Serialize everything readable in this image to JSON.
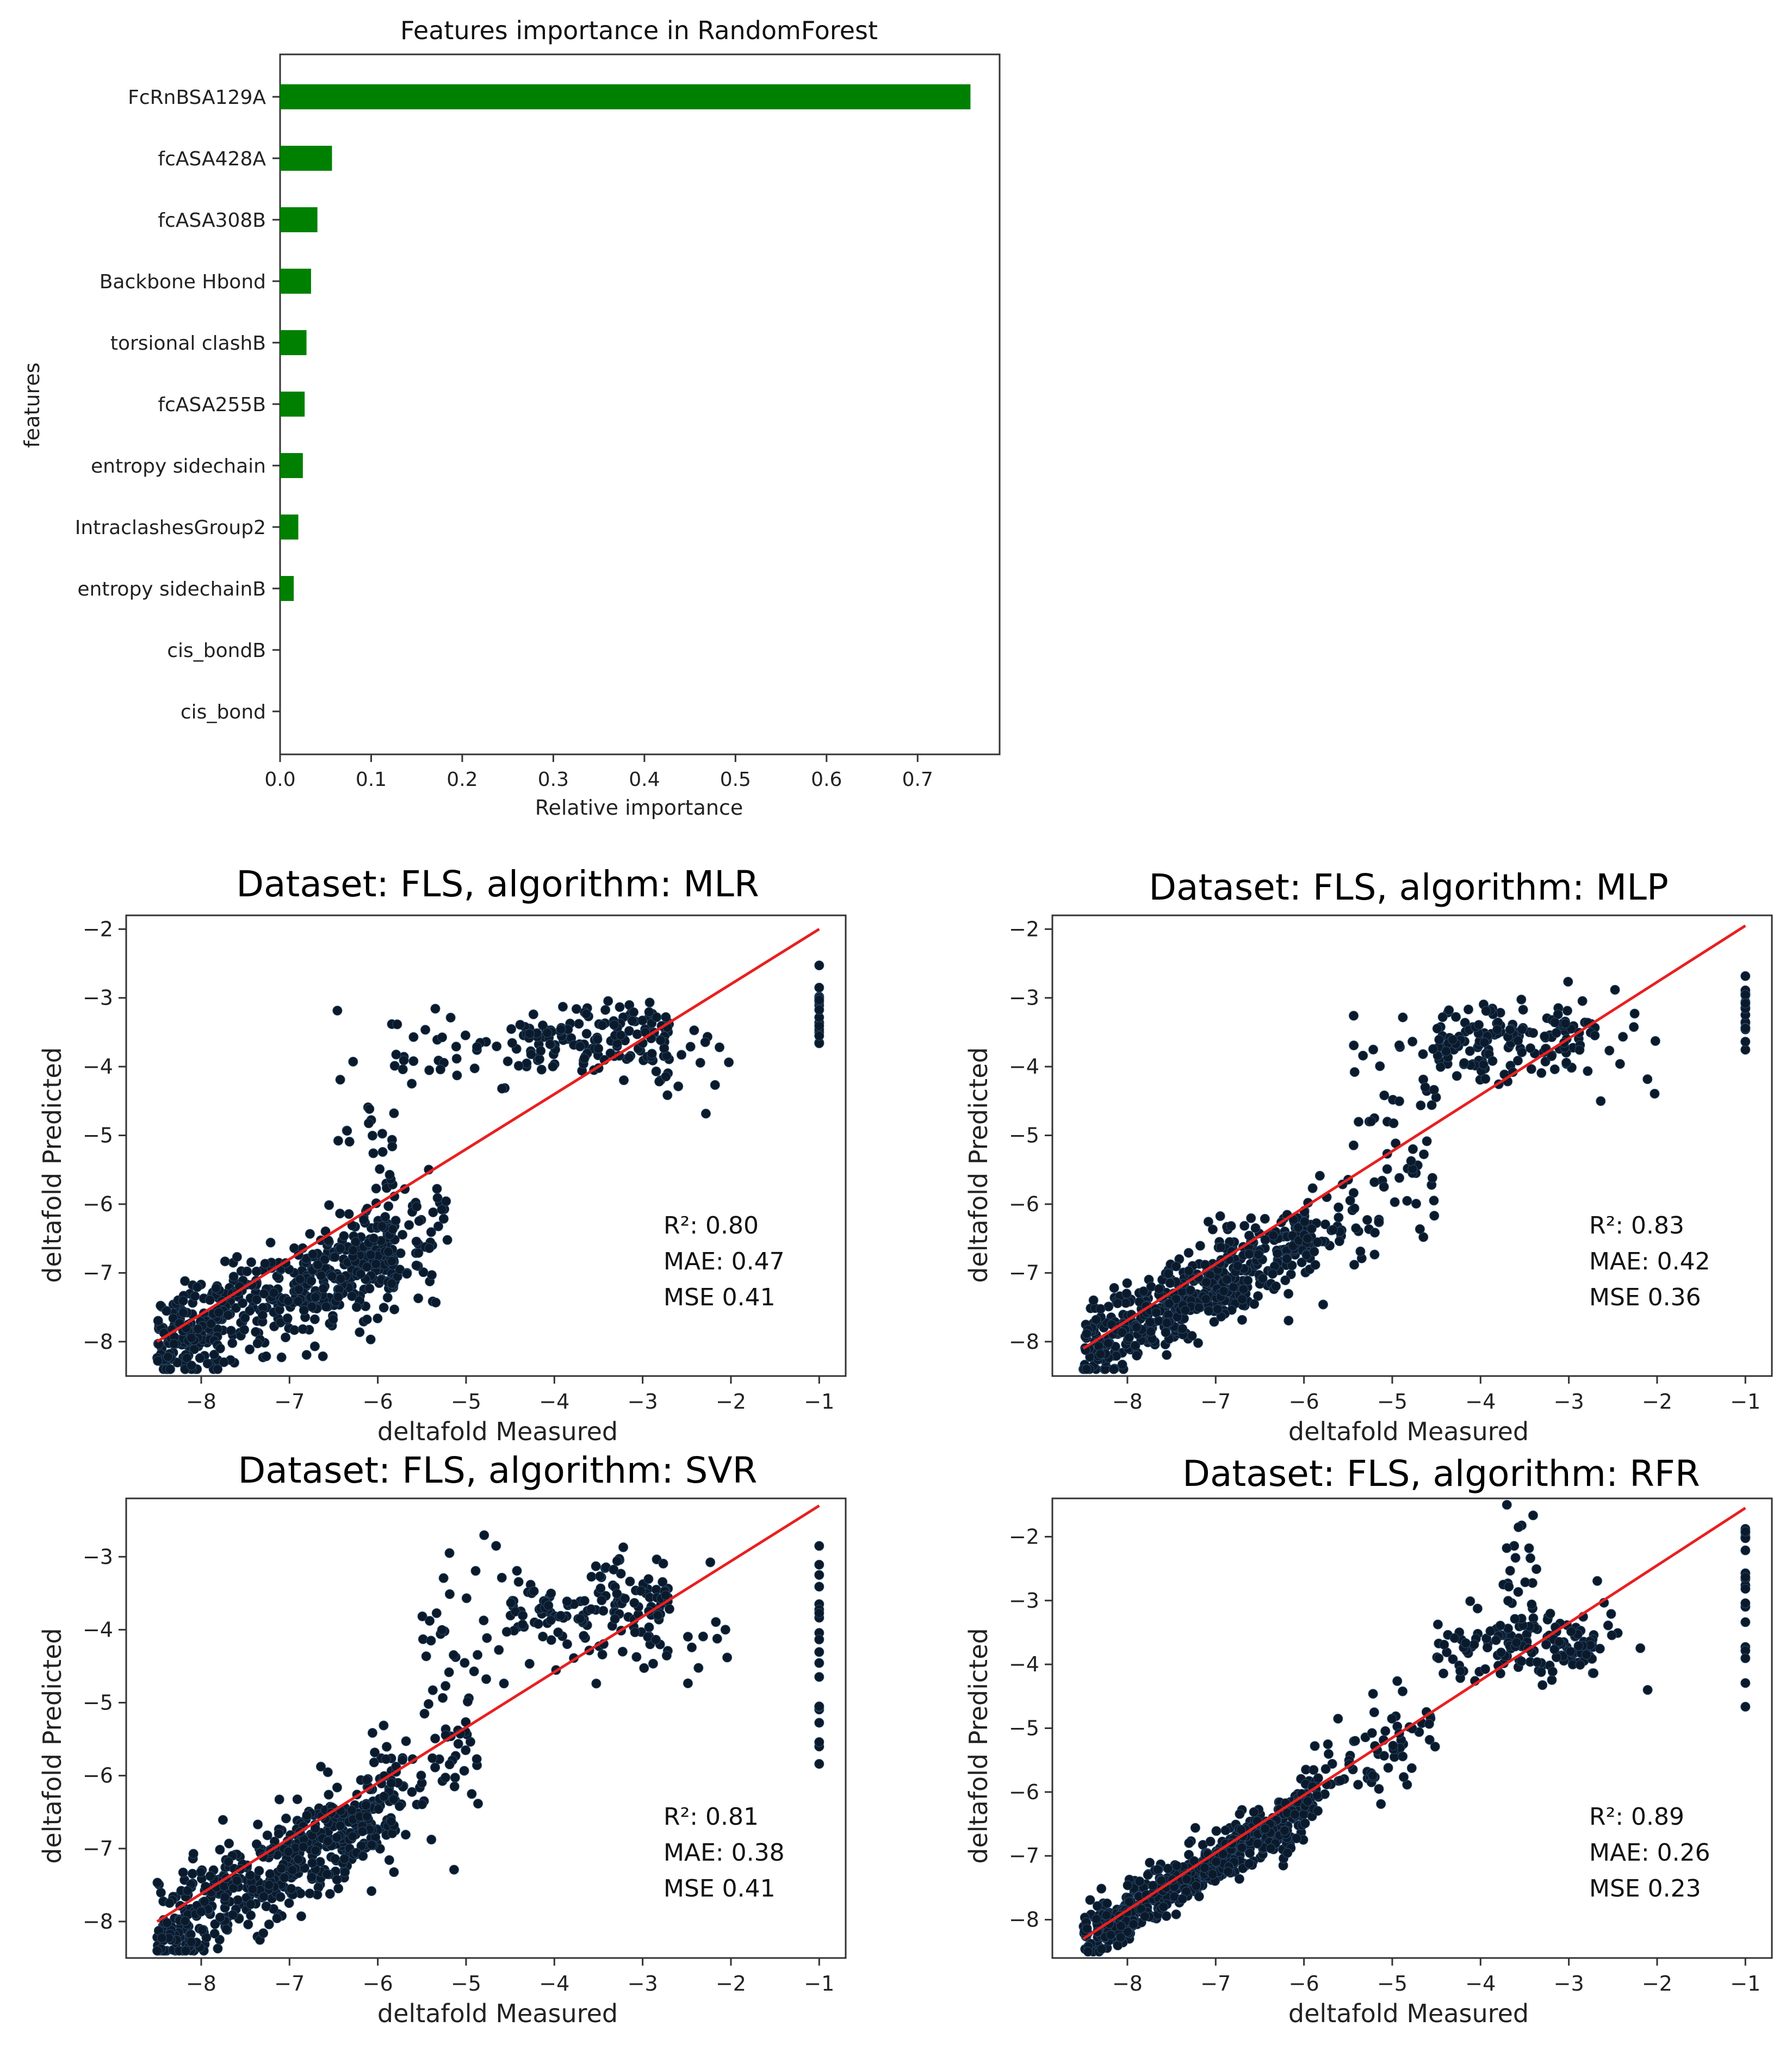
{
  "chart_data": [
    {
      "type": "bar",
      "orientation": "horizontal",
      "title": "Features importance in RandomForest",
      "xlabel": "Relative importance",
      "ylabel": "features",
      "xlim": [
        0,
        0.79
      ],
      "xticks": [
        "0.0",
        "0.1",
        "0.2",
        "0.3",
        "0.4",
        "0.5",
        "0.6",
        "0.7"
      ],
      "bar_color": "#008000",
      "categories": [
        "FcRnBSA129A",
        "fcASA428A",
        "fcASA308B",
        "Backbone Hbond",
        "torsional clashB",
        "fcASA255B",
        "entropy sidechain",
        "IntraclashesGroup2",
        "entropy sidechainB",
        "cis_bondB",
        "cis_bond"
      ],
      "values": [
        0.758,
        0.057,
        0.041,
        0.034,
        0.029,
        0.027,
        0.025,
        0.02,
        0.015,
        0.0,
        0.0
      ]
    },
    {
      "type": "scatter",
      "title": "Dataset: FLS, algorithm: MLR",
      "xlabel": "deltafold Measured",
      "ylabel": "deltafold Predicted",
      "xlim": [
        -8.85,
        -0.7
      ],
      "ylim": [
        -8.5,
        -1.8
      ],
      "xticks": [
        "−8",
        "−7",
        "−6",
        "−5",
        "−4",
        "−3",
        "−2",
        "−1"
      ],
      "yticks": [
        "−8",
        "−7",
        "−6",
        "−5",
        "−4",
        "−3",
        "−2"
      ],
      "fit_line": {
        "x": [
          -8.5,
          -1.0
        ],
        "y": [
          -8.0,
          -2.0
        ],
        "color": "#e82020"
      },
      "point_color": "#0b1a2b",
      "metrics": [
        "R²: 0.80",
        "MAE: 0.47",
        "MSE 0.41"
      ],
      "clusters": [
        {
          "n": 500,
          "xr": [
            -8.5,
            -5.8
          ],
          "slope": 0.5,
          "icpt": -3.8,
          "noise": 0.38
        },
        {
          "n": 70,
          "xr": [
            -6.3,
            -5.2
          ],
          "slope": 0.5,
          "icpt": -3.8,
          "noise": 0.5
        },
        {
          "n": 30,
          "xr": [
            -6.5,
            -5.8
          ],
          "slope": 0.0,
          "icpt": -5.0,
          "noise": 0.8
        },
        {
          "n": 150,
          "xr": [
            -4.5,
            -2.7
          ],
          "slope": 0.0,
          "icpt": -3.6,
          "noise": 0.28
        },
        {
          "n": 30,
          "xr": [
            -5.8,
            -4.5
          ],
          "slope": 0.0,
          "icpt": -3.8,
          "noise": 0.3
        },
        {
          "n": 15,
          "xr": [
            -2.9,
            -2.0
          ],
          "slope": 0.0,
          "icpt": -3.8,
          "noise": 0.35
        },
        {
          "n": 18,
          "xr": [
            -1.0,
            -1.0
          ],
          "slope": 0.0,
          "icpt": -3.2,
          "noise": 0.4
        }
      ]
    },
    {
      "type": "scatter",
      "title": "Dataset: FLS, algorithm: MLP",
      "xlabel": "deltafold Measured",
      "ylabel": "deltafold Predicted",
      "xlim": [
        -8.85,
        -0.7
      ],
      "ylim": [
        -8.5,
        -1.8
      ],
      "xticks": [
        "−8",
        "−7",
        "−6",
        "−5",
        "−4",
        "−3",
        "−2",
        "−1"
      ],
      "yticks": [
        "−8",
        "−7",
        "−6",
        "−5",
        "−4",
        "−3",
        "−2"
      ],
      "fit_line": {
        "x": [
          -8.5,
          -1.0
        ],
        "y": [
          -8.1,
          -1.95
        ],
        "color": "#e82020"
      },
      "point_color": "#0b1a2b",
      "metrics": [
        "R²: 0.83",
        "MAE: 0.42",
        "MSE 0.36"
      ],
      "clusters": [
        {
          "n": 520,
          "xr": [
            -8.5,
            -5.9
          ],
          "slope": 0.65,
          "icpt": -2.6,
          "noise": 0.3
        },
        {
          "n": 70,
          "xr": [
            -6.0,
            -4.5
          ],
          "slope": 0.7,
          "icpt": -2.4,
          "noise": 0.4
        },
        {
          "n": 150,
          "xr": [
            -4.5,
            -2.7
          ],
          "slope": 0.0,
          "icpt": -3.65,
          "noise": 0.3
        },
        {
          "n": 30,
          "xr": [
            -5.5,
            -4.5
          ],
          "slope": 0.0,
          "icpt": -4.2,
          "noise": 0.5
        },
        {
          "n": 15,
          "xr": [
            -2.9,
            -2.0
          ],
          "slope": 0.0,
          "icpt": -3.8,
          "noise": 0.4
        },
        {
          "n": 18,
          "xr": [
            -1.0,
            -1.0
          ],
          "slope": 0.0,
          "icpt": -3.3,
          "noise": 0.4
        }
      ]
    },
    {
      "type": "scatter",
      "title": "Dataset: FLS, algorithm: SVR",
      "xlabel": "deltafold Measured",
      "ylabel": "deltafold Predicted",
      "xlim": [
        -8.85,
        -0.7
      ],
      "ylim": [
        -8.5,
        -2.2
      ],
      "xticks": [
        "−8",
        "−7",
        "−6",
        "−5",
        "−4",
        "−3",
        "−2",
        "−1"
      ],
      "yticks": [
        "−8",
        "−7",
        "−6",
        "−5",
        "−4",
        "−3"
      ],
      "fit_line": {
        "x": [
          -8.5,
          -1.0
        ],
        "y": [
          -8.0,
          -2.3
        ],
        "color": "#e82020"
      },
      "point_color": "#0b1a2b",
      "metrics": [
        "R²: 0.81",
        "MAE: 0.38",
        "MSE 0.41"
      ],
      "clusters": [
        {
          "n": 520,
          "xr": [
            -8.5,
            -5.8
          ],
          "slope": 0.6,
          "icpt": -3.0,
          "noise": 0.35
        },
        {
          "n": 70,
          "xr": [
            -6.2,
            -4.8
          ],
          "slope": 0.55,
          "icpt": -3.0,
          "noise": 0.5
        },
        {
          "n": 150,
          "xr": [
            -4.5,
            -2.7
          ],
          "slope": 0.0,
          "icpt": -3.75,
          "noise": 0.35
        },
        {
          "n": 30,
          "xr": [
            -5.5,
            -4.5
          ],
          "slope": 0.0,
          "icpt": -4.0,
          "noise": 0.5
        },
        {
          "n": 15,
          "xr": [
            -2.9,
            -2.0
          ],
          "slope": 0.0,
          "icpt": -4.2,
          "noise": 0.55
        },
        {
          "n": 20,
          "xr": [
            -1.0,
            -1.0
          ],
          "slope": 0.0,
          "icpt": -4.2,
          "noise": 0.7
        }
      ]
    },
    {
      "type": "scatter",
      "title": "Dataset: FLS, algorithm: RFR",
      "xlabel": "deltafold Measured",
      "ylabel": "deltafold Predicted",
      "xlim": [
        -8.85,
        -0.7
      ],
      "ylim": [
        -8.6,
        -1.4
      ],
      "xticks": [
        "−8",
        "−7",
        "−6",
        "−5",
        "−4",
        "−3",
        "−2",
        "−1"
      ],
      "yticks": [
        "−8",
        "−7",
        "−6",
        "−5",
        "−4",
        "−3",
        "−2"
      ],
      "fit_line": {
        "x": [
          -8.5,
          -1.0
        ],
        "y": [
          -8.3,
          -1.55
        ],
        "color": "#e82020"
      },
      "point_color": "#0b1a2b",
      "metrics": [
        "R²: 0.89",
        "MAE: 0.26",
        "MSE 0.23"
      ],
      "clusters": [
        {
          "n": 560,
          "xr": [
            -8.5,
            -5.9
          ],
          "slope": 0.8,
          "icpt": -1.5,
          "noise": 0.22
        },
        {
          "n": 80,
          "xr": [
            -6.0,
            -4.5
          ],
          "slope": 0.75,
          "icpt": -1.5,
          "noise": 0.35
        },
        {
          "n": 140,
          "xr": [
            -4.5,
            -2.7
          ],
          "slope": 0.0,
          "icpt": -3.7,
          "noise": 0.25
        },
        {
          "n": 25,
          "xr": [
            -3.8,
            -3.2
          ],
          "slope": 0.0,
          "icpt": -2.6,
          "noise": 0.6
        },
        {
          "n": 12,
          "xr": [
            -2.9,
            -2.0
          ],
          "slope": 0.0,
          "icpt": -3.6,
          "noise": 0.6
        },
        {
          "n": 20,
          "xr": [
            -1.0,
            -1.0
          ],
          "slope": 0.0,
          "icpt": -2.9,
          "noise": 0.8
        }
      ]
    }
  ]
}
